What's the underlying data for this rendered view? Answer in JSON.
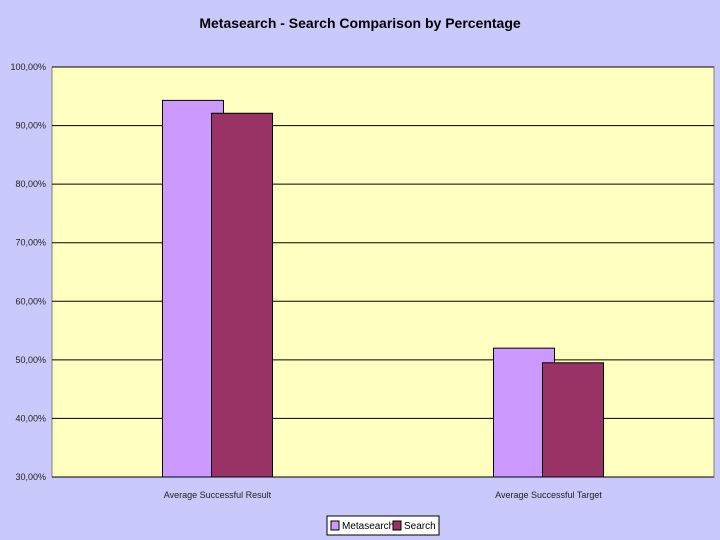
{
  "chart_data": {
    "type": "bar",
    "title": "Metasearch - Search Comparison by Percentage",
    "xlabel": "",
    "ylabel": "",
    "categories": [
      "Average Successful Result",
      "Average Successful Target"
    ],
    "series": [
      {
        "name": "Metasearch",
        "values": [
          94.3,
          52.0
        ],
        "color": "#cc99ff"
      },
      {
        "name": "Search",
        "values": [
          92.1,
          49.5
        ],
        "color": "#993366"
      }
    ],
    "ylim": [
      30,
      100
    ],
    "yticks": [
      30,
      40,
      50,
      60,
      70,
      80,
      90,
      100
    ],
    "ytick_labels": [
      "30,00%",
      "40,00%",
      "50,00%",
      "60,00%",
      "70,00%",
      "80,00%",
      "90,00%",
      "100,00%"
    ],
    "grid": true,
    "legend_position": "bottom",
    "colors": {
      "plot_background": "#ffffc0",
      "page_background": "#c9c9fb"
    }
  }
}
